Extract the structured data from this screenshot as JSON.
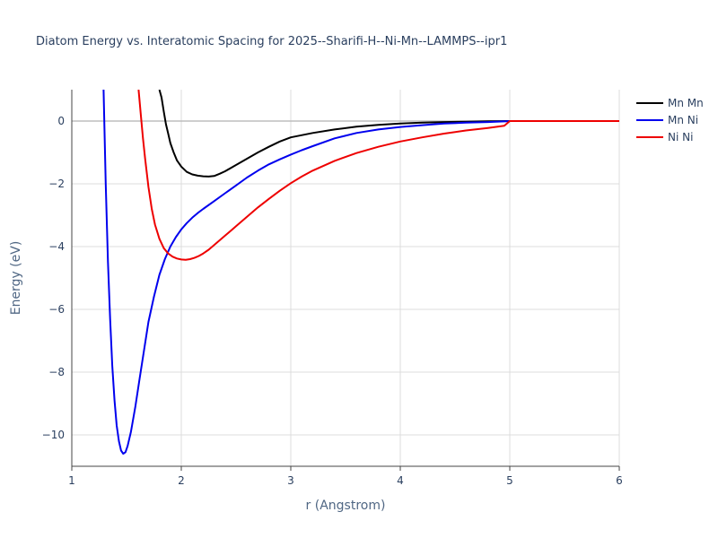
{
  "chart_data": {
    "type": "line",
    "title": "Diatom Energy vs. Interatomic Spacing for 2025--Sharifi-H--Ni-Mn--LAMMPS--ipr1",
    "xlabel": "r (Angstrom)",
    "ylabel": "Energy (eV)",
    "xlim": [
      1,
      6
    ],
    "ylim": [
      -11,
      1
    ],
    "xticks": [
      1,
      2,
      3,
      4,
      5,
      6
    ],
    "yticks": [
      -10,
      -8,
      -6,
      -4,
      -2,
      0
    ],
    "grid": true,
    "legend_position": "top-right",
    "series": [
      {
        "name": "Mn Mn",
        "color": "#000000",
        "x": [
          1.8,
          1.82,
          1.84,
          1.86,
          1.88,
          1.9,
          1.93,
          1.96,
          2.0,
          2.05,
          2.1,
          2.15,
          2.2,
          2.25,
          2.3,
          2.35,
          2.4,
          2.5,
          2.6,
          2.7,
          2.8,
          2.9,
          3.0,
          3.2,
          3.4,
          3.6,
          3.8,
          4.0,
          4.2,
          4.4,
          4.6,
          4.8,
          5.0,
          5.5,
          6.0
        ],
        "values": [
          1.0,
          0.75,
          0.3,
          -0.1,
          -0.4,
          -0.7,
          -1.0,
          -1.25,
          -1.45,
          -1.62,
          -1.7,
          -1.74,
          -1.76,
          -1.77,
          -1.75,
          -1.68,
          -1.6,
          -1.4,
          -1.2,
          -1.0,
          -0.82,
          -0.65,
          -0.52,
          -0.38,
          -0.27,
          -0.18,
          -0.12,
          -0.08,
          -0.05,
          -0.03,
          -0.02,
          -0.01,
          0.0,
          0.0,
          0.0
        ]
      },
      {
        "name": "Mn Ni",
        "color": "#0000ee",
        "x": [
          1.29,
          1.31,
          1.33,
          1.35,
          1.37,
          1.39,
          1.41,
          1.43,
          1.45,
          1.47,
          1.49,
          1.51,
          1.54,
          1.58,
          1.62,
          1.66,
          1.7,
          1.75,
          1.8,
          1.85,
          1.9,
          1.95,
          2.0,
          2.05,
          2.1,
          2.15,
          2.2,
          2.3,
          2.4,
          2.5,
          2.6,
          2.7,
          2.8,
          2.9,
          3.0,
          3.1,
          3.2,
          3.4,
          3.6,
          3.8,
          4.0,
          4.2,
          4.4,
          4.6,
          4.8,
          4.97,
          5.0,
          5.5,
          6.0
        ],
        "values": [
          1.0,
          -2.0,
          -4.5,
          -6.3,
          -7.8,
          -8.9,
          -9.7,
          -10.2,
          -10.5,
          -10.6,
          -10.55,
          -10.35,
          -9.9,
          -9.1,
          -8.2,
          -7.3,
          -6.4,
          -5.6,
          -4.9,
          -4.4,
          -4.0,
          -3.7,
          -3.45,
          -3.25,
          -3.08,
          -2.93,
          -2.8,
          -2.55,
          -2.3,
          -2.05,
          -1.8,
          -1.58,
          -1.38,
          -1.22,
          -1.07,
          -0.93,
          -0.8,
          -0.55,
          -0.38,
          -0.27,
          -0.19,
          -0.13,
          -0.08,
          -0.05,
          -0.03,
          -0.01,
          0.0,
          0.0,
          0.0
        ]
      },
      {
        "name": "Ni Ni",
        "color": "#ee0000",
        "x": [
          1.61,
          1.63,
          1.65,
          1.67,
          1.7,
          1.73,
          1.76,
          1.8,
          1.84,
          1.88,
          1.92,
          1.96,
          2.0,
          2.04,
          2.08,
          2.12,
          2.16,
          2.2,
          2.25,
          2.3,
          2.4,
          2.5,
          2.6,
          2.7,
          2.8,
          2.9,
          3.0,
          3.1,
          3.2,
          3.4,
          3.6,
          3.8,
          4.0,
          4.2,
          4.4,
          4.6,
          4.8,
          4.95,
          5.0,
          5.5,
          6.0
        ],
        "values": [
          1.0,
          0.2,
          -0.55,
          -1.2,
          -2.1,
          -2.8,
          -3.3,
          -3.75,
          -4.05,
          -4.22,
          -4.32,
          -4.38,
          -4.41,
          -4.42,
          -4.4,
          -4.36,
          -4.3,
          -4.22,
          -4.1,
          -3.95,
          -3.65,
          -3.35,
          -3.05,
          -2.75,
          -2.48,
          -2.22,
          -1.98,
          -1.77,
          -1.58,
          -1.27,
          -1.02,
          -0.82,
          -0.65,
          -0.52,
          -0.4,
          -0.3,
          -0.22,
          -0.15,
          0.0,
          0.0,
          0.0
        ]
      }
    ]
  }
}
